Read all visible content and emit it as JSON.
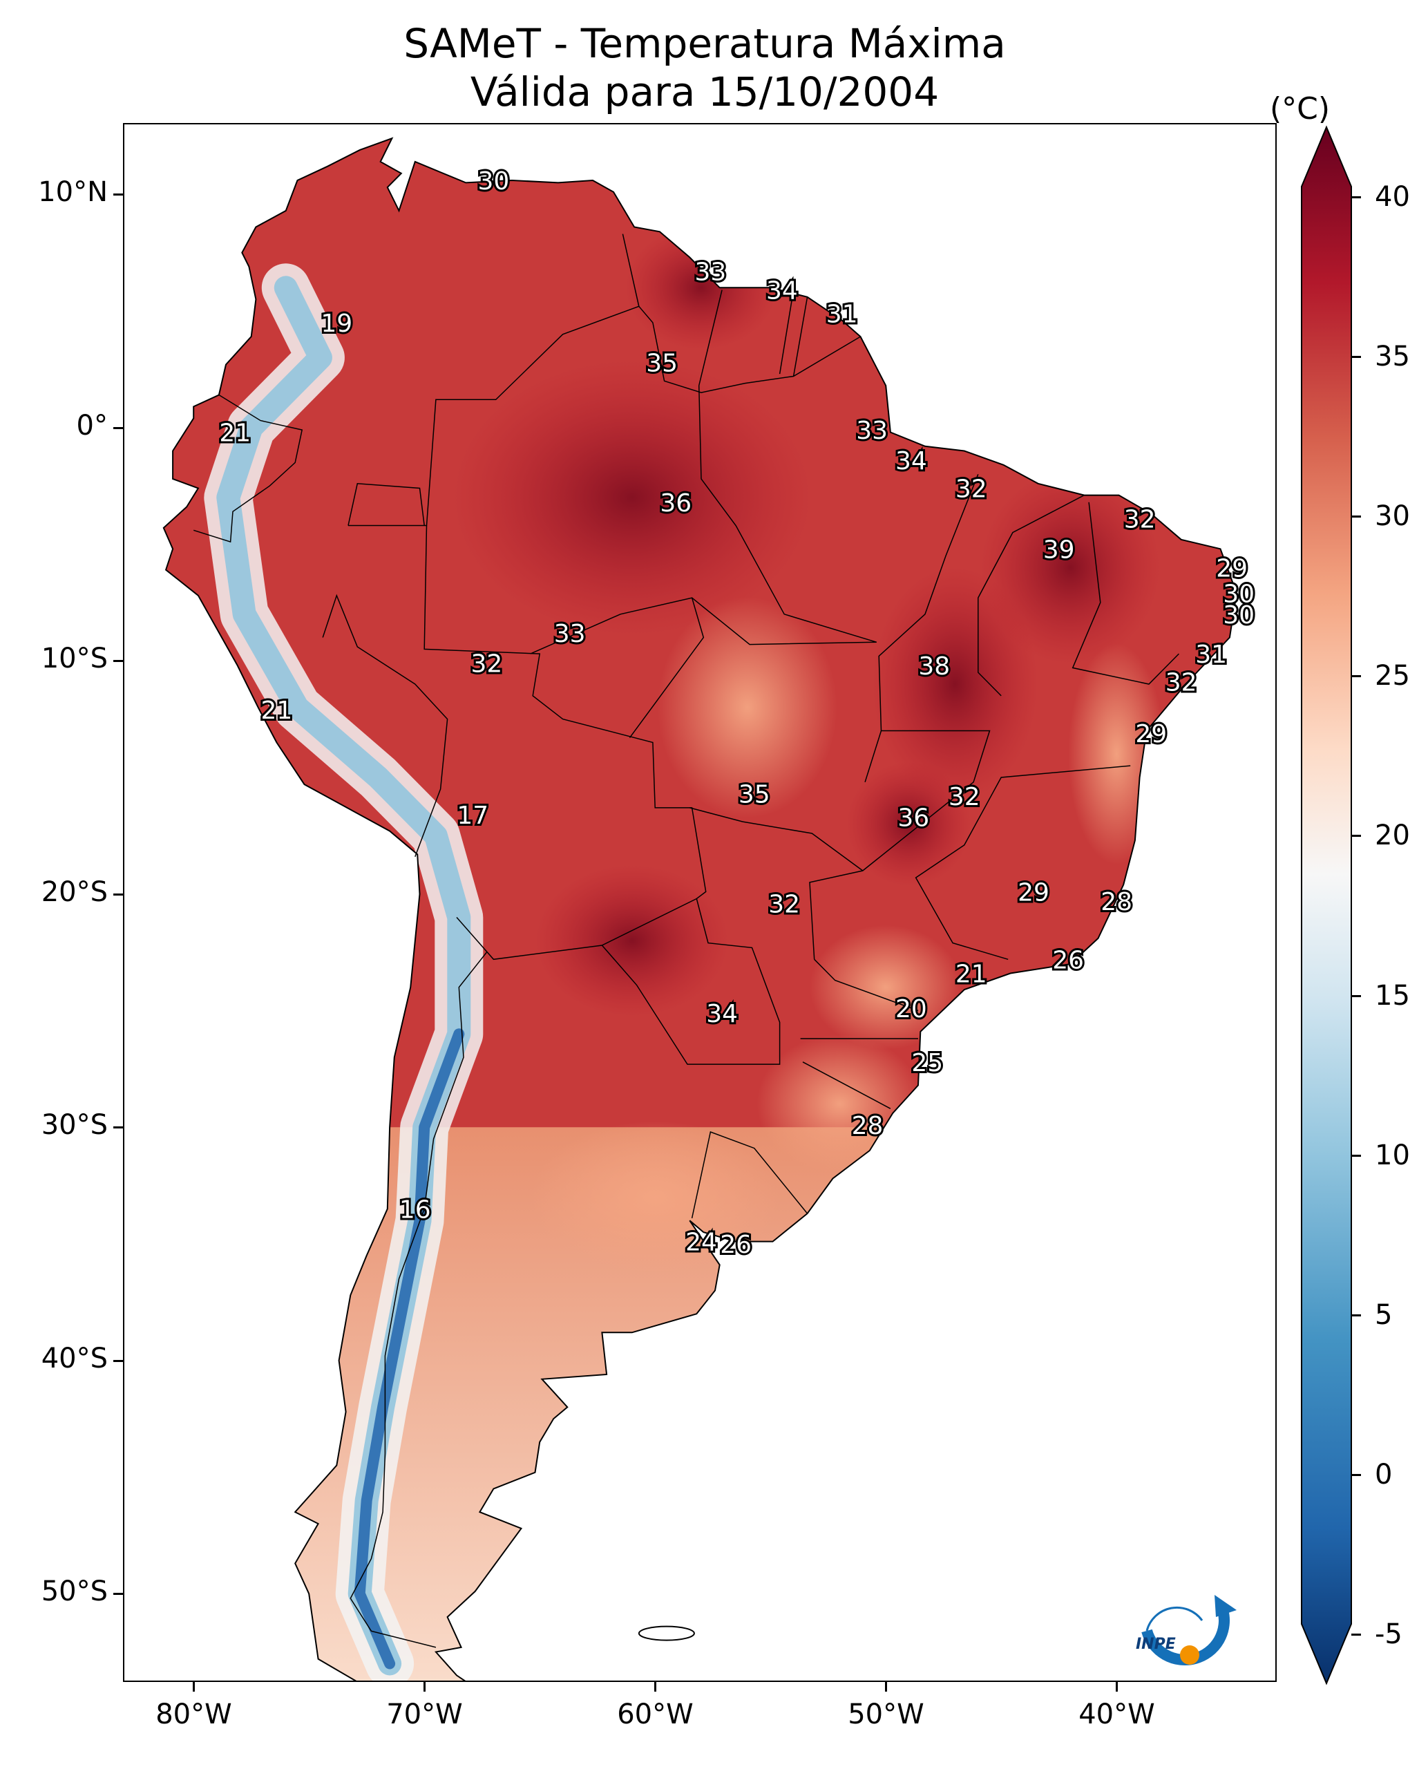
{
  "title": {
    "line1": "SAMeT - Temperatura Máxima",
    "line2": "Válida para 15/10/2004"
  },
  "colorbar": {
    "unit": "(°C)",
    "ticks": [
      "40",
      "35",
      "30",
      "25",
      "20",
      "15",
      "10",
      "5",
      "0",
      "-5"
    ],
    "range": [
      -5,
      40
    ],
    "colors": [
      "#08306b",
      "#2166ac",
      "#4393c3",
      "#92c5de",
      "#d1e5f0",
      "#f7f7f7",
      "#fddbc7",
      "#f4a582",
      "#d6604d",
      "#b2182b",
      "#67001f"
    ]
  },
  "axes": {
    "lon_labels": [
      "80°W",
      "70°W",
      "60°W",
      "50°W",
      "40°W"
    ],
    "lat_labels": [
      "10°N",
      "0°",
      "10°S",
      "20°S",
      "30°S",
      "40°S",
      "50°S"
    ]
  },
  "temperature_labels": [
    {
      "value": "30",
      "lon": -67.0,
      "lat": 10.6
    },
    {
      "value": "33",
      "lon": -57.6,
      "lat": 6.7
    },
    {
      "value": "34",
      "lon": -54.5,
      "lat": 5.9
    },
    {
      "value": "31",
      "lon": -51.9,
      "lat": 4.9
    },
    {
      "value": "19",
      "lon": -73.8,
      "lat": 4.5
    },
    {
      "value": "35",
      "lon": -59.7,
      "lat": 2.8
    },
    {
      "value": "21",
      "lon": -78.2,
      "lat": -0.2
    },
    {
      "value": "33",
      "lon": -50.6,
      "lat": -0.1
    },
    {
      "value": "34",
      "lon": -48.9,
      "lat": -1.4
    },
    {
      "value": "36",
      "lon": -59.1,
      "lat": -3.2
    },
    {
      "value": "32",
      "lon": -46.3,
      "lat": -2.6
    },
    {
      "value": "32",
      "lon": -39.0,
      "lat": -3.9
    },
    {
      "value": "39",
      "lon": -42.5,
      "lat": -5.2
    },
    {
      "value": "29",
      "lon": -35.0,
      "lat": -6.0
    },
    {
      "value": "30",
      "lon": -34.7,
      "lat": -7.1
    },
    {
      "value": "30",
      "lon": -34.7,
      "lat": -8.0
    },
    {
      "value": "33",
      "lon": -63.7,
      "lat": -8.8
    },
    {
      "value": "32",
      "lon": -67.3,
      "lat": -10.1
    },
    {
      "value": "38",
      "lon": -47.9,
      "lat": -10.2
    },
    {
      "value": "31",
      "lon": -35.9,
      "lat": -9.7
    },
    {
      "value": "32",
      "lon": -37.2,
      "lat": -10.9
    },
    {
      "value": "21",
      "lon": -76.4,
      "lat": -12.1
    },
    {
      "value": "29",
      "lon": -38.5,
      "lat": -13.1
    },
    {
      "value": "35",
      "lon": -55.7,
      "lat": -15.7
    },
    {
      "value": "32",
      "lon": -46.6,
      "lat": -15.8
    },
    {
      "value": "36",
      "lon": -48.8,
      "lat": -16.7
    },
    {
      "value": "17",
      "lon": -67.9,
      "lat": -16.6
    },
    {
      "value": "29",
      "lon": -43.6,
      "lat": -19.9
    },
    {
      "value": "28",
      "lon": -40.0,
      "lat": -20.3
    },
    {
      "value": "32",
      "lon": -54.4,
      "lat": -20.4
    },
    {
      "value": "26",
      "lon": -42.1,
      "lat": -22.8
    },
    {
      "value": "21",
      "lon": -46.3,
      "lat": -23.4
    },
    {
      "value": "34",
      "lon": -57.1,
      "lat": -25.1
    },
    {
      "value": "20",
      "lon": -48.9,
      "lat": -24.9
    },
    {
      "value": "25",
      "lon": -48.2,
      "lat": -27.2
    },
    {
      "value": "28",
      "lon": -50.8,
      "lat": -29.9
    },
    {
      "value": "16",
      "lon": -70.4,
      "lat": -33.5
    },
    {
      "value": "24",
      "lon": -58.0,
      "lat": -34.9
    },
    {
      "value": "26",
      "lon": -56.5,
      "lat": -35.0
    }
  ],
  "logo": {
    "text": "INPE"
  }
}
